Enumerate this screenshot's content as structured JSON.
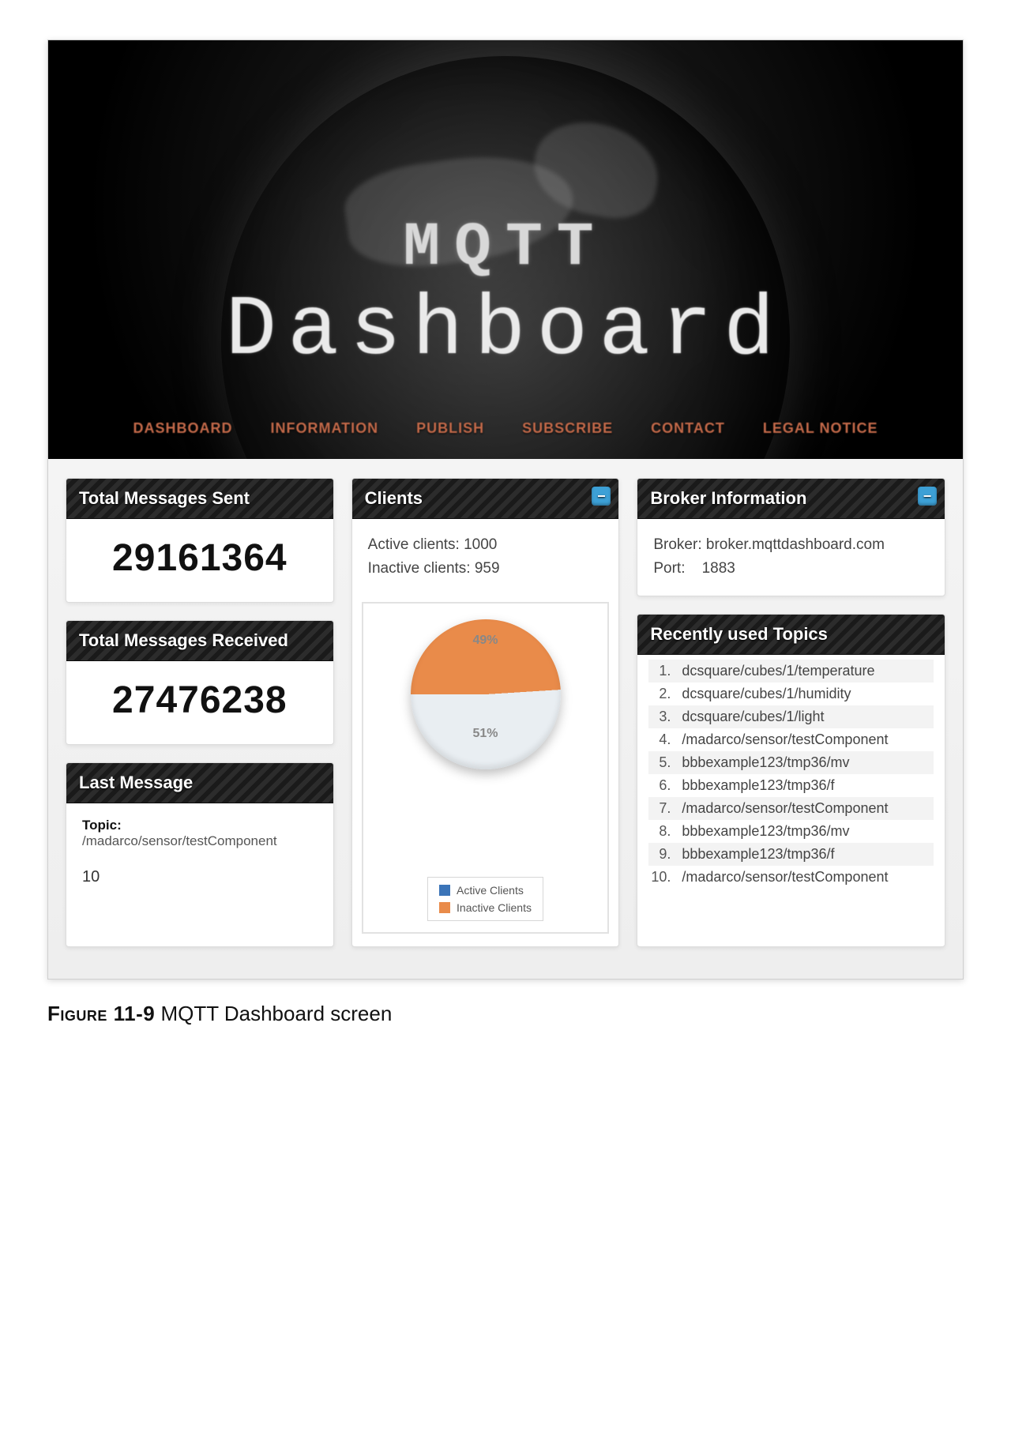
{
  "hero": {
    "line1": "MQTT",
    "line2": "Dashboard"
  },
  "nav": {
    "items": [
      {
        "label": "DASHBOARD"
      },
      {
        "label": "INFORMATION"
      },
      {
        "label": "PUBLISH"
      },
      {
        "label": "SUBSCRIBE"
      },
      {
        "label": "CONTACT"
      },
      {
        "label": "LEGAL NOTICE"
      }
    ],
    "active_color": "#c46a4a"
  },
  "cards": {
    "total_sent": {
      "title": "Total Messages Sent",
      "value": "29161364"
    },
    "total_recv": {
      "title": "Total Messages Received",
      "value": "27476238"
    },
    "last_msg": {
      "title": "Last Message",
      "topic_label": "Topic:",
      "topic": "/madarco/sensor/testComponent",
      "value": "10"
    },
    "clients": {
      "title": "Clients",
      "active_label": "Active clients:",
      "active_value": "1000",
      "inactive_label": "Inactive clients:",
      "inactive_value": "959",
      "chart": {
        "type": "pie",
        "slices": [
          {
            "name": "Inactive Clients",
            "pct": 49,
            "label": "49%",
            "color": "#e98b4a"
          },
          {
            "name": "Active Clients",
            "pct": 51,
            "label": "51%",
            "color": "#e9eef2"
          }
        ],
        "legend_active_color": "#3b74b8",
        "background_color": "#ffffff",
        "border_color": "#e2e2e2",
        "label_color": "#8a8a8a",
        "label_fontsize": 16
      }
    },
    "broker": {
      "title": "Broker Information",
      "broker_label": "Broker:",
      "broker_value": "broker.mqttdashboard.com",
      "port_label": "Port:",
      "port_value": "1883"
    },
    "topics": {
      "title": "Recently used Topics",
      "items": [
        "dcsquare/cubes/1/temperature",
        "dcsquare/cubes/1/humidity",
        "dcsquare/cubes/1/light",
        "/madarco/sensor/testComponent",
        "bbbexample123/tmp36/mv",
        "bbbexample123/tmp36/f",
        "/madarco/sensor/testComponent",
        "bbbexample123/tmp36/mv",
        "bbbexample123/tmp36/f",
        "/madarco/sensor/testComponent"
      ]
    }
  },
  "style": {
    "header_stripe_dark": "#1a1a1a",
    "header_stripe_light": "#2c2c2c",
    "collapse_icon_bg": "#3da0d6",
    "page_bg": "#eeeeee",
    "card_border": "#dcdcdc"
  },
  "caption": {
    "label": "Figure 11-9",
    "text": "MQTT Dashboard screen"
  }
}
